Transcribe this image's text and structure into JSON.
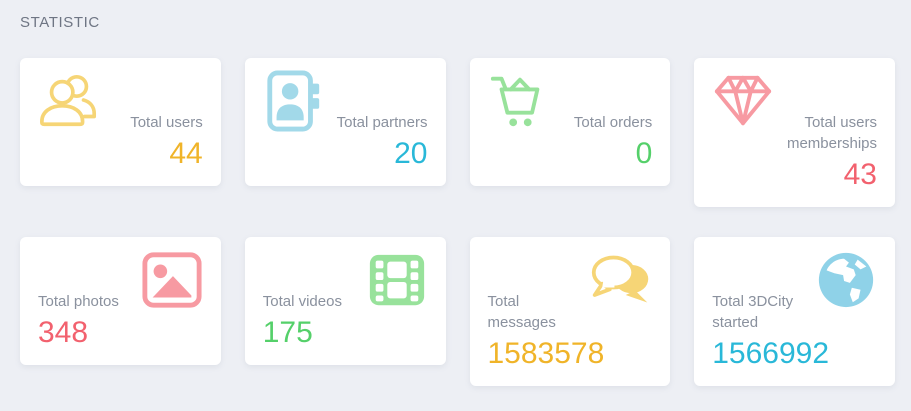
{
  "page": {
    "title": "STATISTIC",
    "background_color": "#edeff4",
    "label_color": "#8a919e"
  },
  "cards": [
    {
      "id": "total-users",
      "label": "Total users",
      "value": "44",
      "icon": "users-icon",
      "icon_color": "#f6d576",
      "value_color": "#f0b429",
      "layout": "icon-left"
    },
    {
      "id": "total-partners",
      "label": "Total partners",
      "value": "20",
      "icon": "address-book-icon",
      "icon_color": "#a2d9e9",
      "value_color": "#29b8d8",
      "layout": "icon-left"
    },
    {
      "id": "total-orders",
      "label": "Total orders",
      "value": "0",
      "icon": "cart-icon",
      "icon_color": "#98e29b",
      "value_color": "#55d06a",
      "layout": "icon-left"
    },
    {
      "id": "total-users-memberships",
      "label": "Total users memberships",
      "value": "43",
      "icon": "diamond-icon",
      "icon_color": "#f79aa2",
      "value_color": "#f2616e",
      "layout": "icon-left"
    },
    {
      "id": "total-photos",
      "label": "Total photos",
      "value": "348",
      "icon": "photo-icon",
      "icon_color": "#f79aa2",
      "value_color": "#f2616e",
      "layout": "icon-right"
    },
    {
      "id": "total-videos",
      "label": "Total videos",
      "value": "175",
      "icon": "film-icon",
      "icon_color": "#98e29b",
      "value_color": "#55d06a",
      "layout": "icon-right"
    },
    {
      "id": "total-messages",
      "label": "Total messages",
      "value": "1583578",
      "icon": "chat-bubbles-icon",
      "icon_color": "#f6d576",
      "value_color": "#f0b429",
      "layout": "icon-right"
    },
    {
      "id": "total-3dcity-started",
      "label": "Total 3DCity started",
      "value": "1566992",
      "icon": "globe-icon",
      "icon_color": "#8fd2e8",
      "value_color": "#29b8d8",
      "layout": "icon-right"
    }
  ]
}
